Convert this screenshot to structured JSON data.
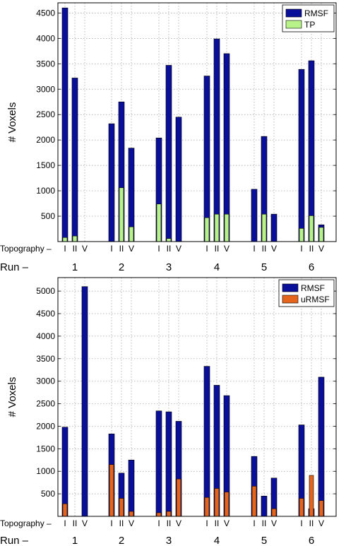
{
  "chart_data": [
    {
      "type": "bar",
      "ylabel": "# Voxels",
      "ylim": [
        0,
        4700
      ],
      "yticks": [
        500,
        1000,
        1500,
        2000,
        2500,
        3000,
        3500,
        4000,
        4500
      ],
      "grid": true,
      "legend_position": "top-right",
      "row_labels": {
        "topography": "Topography –",
        "run": "Run –"
      },
      "runs": [
        "1",
        "2",
        "3",
        "4",
        "5",
        "6"
      ],
      "topographies": [
        "I",
        "II",
        "V"
      ],
      "series": [
        {
          "name": "RMSF",
          "color": "#0a0f9a",
          "values": [
            [
              4600,
              3220,
              0
            ],
            [
              2320,
              2750,
              1840
            ],
            [
              2040,
              3470,
              2450
            ],
            [
              3260,
              3990,
              3700
            ],
            [
              1030,
              2070,
              540
            ],
            [
              3390,
              3560,
              330
            ]
          ]
        },
        {
          "name": "TP",
          "color": "#b7f389",
          "values": [
            [
              80,
              110,
              0
            ],
            [
              0,
              1060,
              290
            ],
            [
              740,
              60,
              0
            ],
            [
              470,
              540,
              540
            ],
            [
              0,
              540,
              0
            ],
            [
              260,
              510,
              280
            ]
          ]
        }
      ]
    },
    {
      "type": "bar",
      "ylabel": "# Voxels",
      "ylim": [
        0,
        5300
      ],
      "yticks": [
        500,
        1000,
        1500,
        2000,
        2500,
        3000,
        3500,
        4000,
        4500,
        5000
      ],
      "grid": true,
      "legend_position": "top-right",
      "row_labels": {
        "topography": "Topography –",
        "run": "Run –"
      },
      "runs": [
        "1",
        "2",
        "3",
        "4",
        "5",
        "6"
      ],
      "topographies": [
        "I",
        "II",
        "V"
      ],
      "series": [
        {
          "name": "RMSF",
          "color": "#0a0f9a",
          "values": [
            [
              1980,
              0,
              5100
            ],
            [
              1830,
              960,
              1250
            ],
            [
              2340,
              2320,
              2110
            ],
            [
              3330,
              2910,
              2680
            ],
            [
              1330,
              450,
              850
            ],
            [
              2030,
              170,
              3090
            ]
          ]
        },
        {
          "name": "uRMSF",
          "color": "#e6651c",
          "values": [
            [
              280,
              0,
              0
            ],
            [
              1150,
              400,
              110
            ],
            [
              80,
              110,
              830
            ],
            [
              420,
              620,
              540
            ],
            [
              670,
              0,
              170
            ],
            [
              400,
              910,
              350
            ]
          ]
        }
      ]
    }
  ]
}
